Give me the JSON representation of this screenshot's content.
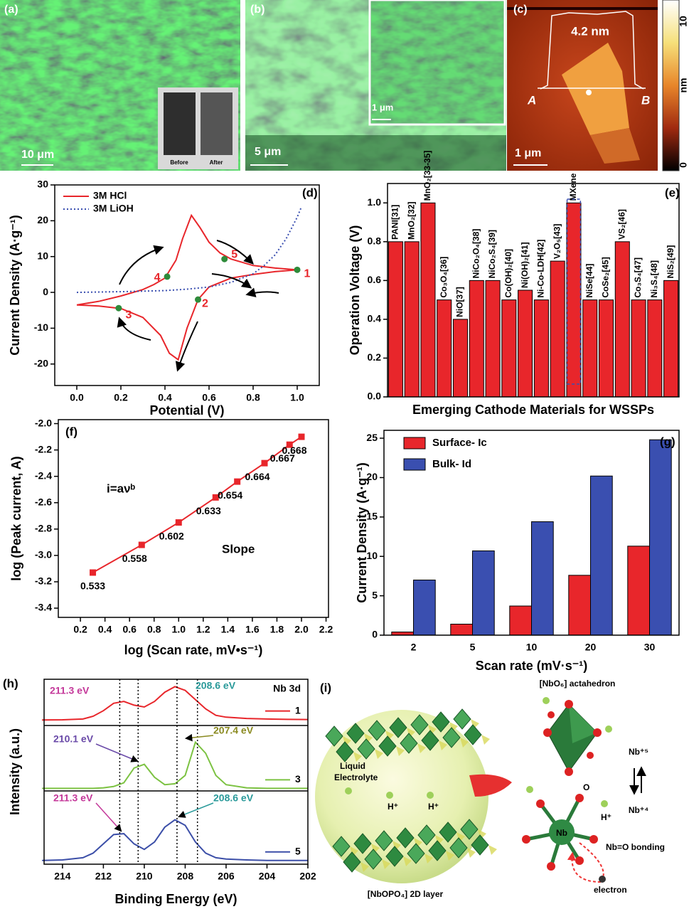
{
  "panels": {
    "a": {
      "label": "(a)",
      "scale": "10 μm",
      "inset": [
        "Before",
        "After"
      ]
    },
    "b": {
      "label": "(b)",
      "scale": "5 μm",
      "inset_scale": "1 μm"
    },
    "c": {
      "label": "(c)",
      "height": "4.2 nm",
      "points": [
        "A",
        "B"
      ],
      "scale": "1 μm",
      "colorbar": {
        "label": "nm",
        "min": 0,
        "max": 10
      }
    },
    "i": {
      "label": "(i)",
      "octahedron": "[NbO₆] actahedron",
      "electrolyte": [
        "Liquid",
        "Electrolyte"
      ],
      "protons": [
        "H⁺",
        "H⁺",
        "H⁺"
      ],
      "states": [
        "Nb⁺⁵",
        "Nb⁺⁴"
      ],
      "oxygen": "O",
      "center": "Nb",
      "bonding": "Nb=O bonding",
      "electron": "electron",
      "layer": "[NbOPO₄] 2D layer"
    }
  },
  "chart_data": [
    {
      "type": "line",
      "panel": "(d)",
      "xlabel": "Potential (V)",
      "ylabel": "Current Density (A·g⁻¹)",
      "xlim": [
        -0.1,
        1.1
      ],
      "xticks": [
        {
          "value": 0,
          "label": "0.0"
        },
        {
          "value": 0.2,
          "label": "0.2"
        },
        {
          "value": 0.4,
          "label": "0.4"
        },
        {
          "value": 0.6,
          "label": "0.6"
        },
        {
          "value": 0.8,
          "label": "0.8"
        },
        {
          "value": 1,
          "label": "1.0"
        }
      ],
      "ylim": [
        -26,
        30
      ],
      "yticks": [
        -20,
        -10,
        0,
        10,
        20,
        30
      ],
      "legend": "upper left",
      "series": [
        {
          "name": "3M HCl",
          "color": "#e8262b",
          "x": [
            0.0,
            0.1,
            0.2,
            0.3,
            0.35,
            0.4,
            0.45,
            0.48,
            0.52,
            0.56,
            0.6,
            0.65,
            0.7,
            0.8,
            0.9,
            1.0,
            0.9,
            0.8,
            0.7,
            0.6,
            0.55,
            0.5,
            0.46,
            0.42,
            0.38,
            0.3,
            0.2,
            0.1,
            0.0
          ],
          "values": [
            -3.5,
            -2.5,
            -1.0,
            0.8,
            2.2,
            4.0,
            9,
            15,
            21.5,
            18,
            14,
            11,
            9.3,
            7.5,
            6.8,
            6.3,
            5.8,
            5.0,
            4.0,
            1.5,
            -2,
            -10,
            -18.8,
            -17,
            -12,
            -7,
            -4.5,
            -3.8,
            -3.5
          ]
        },
        {
          "name": "3M LiOH",
          "color": "#3a4fb0",
          "dash": "dotted",
          "x": [
            0,
            0.2,
            0.4,
            0.5,
            0.6,
            0.7,
            0.8,
            0.85,
            0.9,
            0.95,
            1.0,
            1.02
          ],
          "values": [
            0,
            0.2,
            0.5,
            0.9,
            1.5,
            2.8,
            5.2,
            7.5,
            10.5,
            15,
            21,
            24
          ]
        }
      ],
      "points": {
        "labels": [
          "1",
          "2",
          "3",
          "4",
          "5"
        ],
        "x": [
          1.0,
          0.55,
          0.19,
          0.41,
          0.67
        ],
        "values": [
          6.3,
          -2,
          -4.4,
          4.4,
          9.3
        ],
        "color": "#2e8b3a"
      }
    },
    {
      "type": "bar",
      "panel": "(e)",
      "xlabel": "Emerging Cathode Materials for WSSPs",
      "ylabel": "Operation Voltage (V)",
      "categories": [
        "PANI[31]",
        "MnO₂[32]",
        "MnO₂[33-35]",
        "Co₃O₄[36]",
        "NiO[37]",
        "NiCo₂O₄[38]",
        "NiCo₂S₄[39]",
        "Co(OH)₂[40]",
        "Ni(OH)₂[41]",
        "Ni-Co-LDH[42]",
        "V₂O₅[43]",
        "MXene",
        "NiSe[44]",
        "CoSe₂[45]",
        "VS₂[46]",
        "Co₃S₄[47]",
        "Ni₃S₄[48]",
        "NiS₂[49]"
      ],
      "values": [
        0.8,
        0.8,
        1.0,
        0.5,
        0.4,
        0.6,
        0.6,
        0.5,
        0.55,
        0.5,
        0.7,
        1.0,
        0.5,
        0.5,
        0.8,
        0.5,
        0.5,
        0.6
      ],
      "color": "#e8262b",
      "ylim": [
        0,
        1.1
      ],
      "yticks": [
        {
          "value": 0,
          "label": "0.0"
        },
        {
          "value": 0.2,
          "label": "0.2"
        },
        {
          "value": 0.4,
          "label": "0.4"
        },
        {
          "value": 0.6,
          "label": "0.6"
        },
        {
          "value": 0.8,
          "label": "0.8"
        },
        {
          "value": 1,
          "label": "1.0"
        }
      ]
    },
    {
      "type": "line",
      "panel": "(f)",
      "xlabel": "log (Scan rate, mV•s⁻¹)",
      "ylabel": "log (Peak current, A)",
      "marker": "square",
      "x": [
        0.301,
        0.699,
        1.0,
        1.301,
        1.477,
        1.699,
        1.903,
        2.0
      ],
      "series": [
        {
          "color": "#e8262b",
          "values": [
            -3.13,
            -2.92,
            -2.75,
            -2.56,
            -2.44,
            -2.3,
            -2.16,
            -2.1
          ]
        }
      ],
      "point_labels": [
        "0.533",
        "0.558",
        "0.602",
        "0.633",
        "0.654",
        "0.664",
        "0.667",
        "0.668"
      ],
      "annotations": [
        "i=aνᵇ",
        "Slope"
      ],
      "xlim": [
        0.02,
        2.22
      ],
      "xticks": [
        {
          "value": 0.2,
          "label": "0.2"
        },
        {
          "value": 0.4,
          "label": "0.4"
        },
        {
          "value": 0.6,
          "label": "0.6"
        },
        {
          "value": 0.8,
          "label": "0.8"
        },
        {
          "value": 1,
          "label": "1.0"
        },
        {
          "value": 1.2,
          "label": "1.2"
        },
        {
          "value": 1.4,
          "label": "1.4"
        },
        {
          "value": 1.6,
          "label": "1.6"
        },
        {
          "value": 1.8,
          "label": "1.8"
        },
        {
          "value": 2,
          "label": "2.0"
        },
        {
          "value": 2.2,
          "label": "2.2"
        }
      ],
      "ylim": [
        -3.47,
        -1.97
      ],
      "yticks": [
        {
          "value": -3.4,
          "label": "-3.4"
        },
        {
          "value": -3.2,
          "label": "-3.2"
        },
        {
          "value": -3,
          "label": "-3.0"
        },
        {
          "value": -2.8,
          "label": "-2.8"
        },
        {
          "value": -2.6,
          "label": "-2.6"
        },
        {
          "value": -2.4,
          "label": "-2.4"
        },
        {
          "value": -2.2,
          "label": "-2.2"
        },
        {
          "value": -2,
          "label": "-2.0"
        }
      ]
    },
    {
      "type": "bar",
      "panel": "(g)",
      "xlabel": "Scan rate (mV·s⁻¹)",
      "ylabel": "Current Density (A·g⁻¹)",
      "categories": [
        "2",
        "5",
        "10",
        "20",
        "30"
      ],
      "series": [
        {
          "name": "Surface- Ic",
          "color": "#e8262b",
          "values": [
            0.4,
            1.4,
            3.7,
            7.6,
            11.3
          ]
        },
        {
          "name": "Bulk- Id",
          "color": "#3a4fb0",
          "values": [
            7.0,
            10.7,
            14.4,
            20.2,
            24.8
          ]
        }
      ],
      "ylim": [
        0,
        26
      ],
      "yticks": [
        0,
        5,
        10,
        15,
        20,
        25
      ],
      "legend": "upper left"
    },
    {
      "type": "line",
      "panel": "(h)",
      "xlabel": "Binding Energy (eV)",
      "ylabel": "Intensity (a.u.)",
      "title": "Nb 3d",
      "x": [
        215,
        214,
        213,
        212.5,
        212,
        211.5,
        211,
        210.5,
        210,
        209.5,
        209,
        208.5,
        208,
        207.5,
        207,
        206.5,
        206,
        205,
        204,
        203,
        202
      ],
      "series": [
        {
          "name": "1",
          "color": "#e8262b",
          "values": [
            78,
            78.1,
            78.5,
            80,
            83,
            87,
            88,
            86,
            85,
            88,
            93,
            96,
            94,
            89,
            84,
            80.5,
            79.5,
            78.8,
            78.5,
            78.3,
            78.2
          ]
        },
        {
          "name": "3",
          "color": "#7cc242",
          "values": [
            41,
            41,
            41,
            41,
            41.3,
            42,
            44,
            52,
            54,
            47,
            43,
            43.5,
            48,
            66,
            60,
            48,
            43,
            41.3,
            41,
            41,
            41
          ]
        },
        {
          "name": "5",
          "color": "#3c4fa8",
          "values": [
            2,
            2.3,
            3.5,
            6,
            11,
            16,
            16.5,
            11,
            8,
            12,
            20,
            24,
            21,
            12,
            6,
            3.5,
            2.8,
            2.3,
            2,
            2,
            2
          ]
        }
      ],
      "vlines": [
        211.2,
        210.3,
        208.4,
        207.4
      ],
      "annotations": [
        {
          "text": "211.3 eV",
          "color": "#c4389a"
        },
        {
          "text": "208.6 eV",
          "color": "#2a9a9a"
        },
        {
          "text": "210.1 eV",
          "color": "#6a4aa8"
        },
        {
          "text": "207.4 eV",
          "color": "#8a8a20"
        },
        {
          "text": "211.3 eV",
          "color": "#c4389a"
        },
        {
          "text": "208.6 eV",
          "color": "#2a9a9a"
        }
      ],
      "xlim": [
        214.9,
        202
      ],
      "xticks": [
        214,
        212,
        210,
        208,
        206,
        204,
        202
      ],
      "ylim": [
        0,
        100
      ]
    }
  ]
}
